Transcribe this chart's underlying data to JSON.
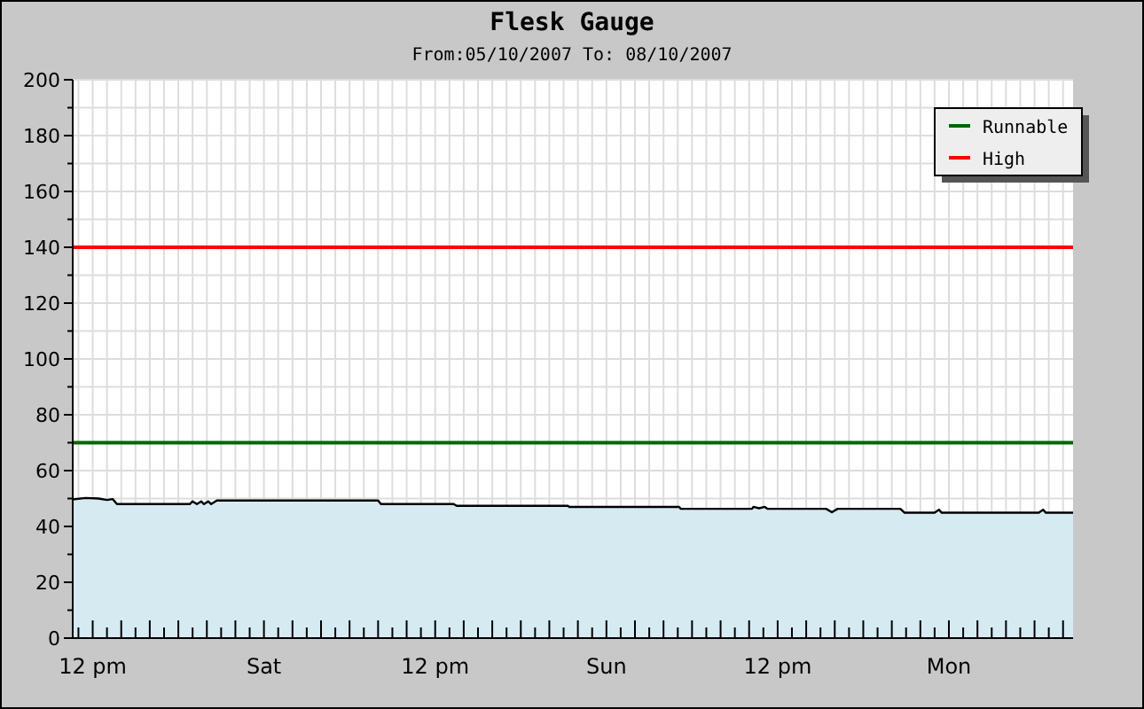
{
  "chart_data": {
    "type": "area",
    "title": "Flesk Gauge",
    "subtitle": "From:05/10/2007 To: 08/10/2007",
    "xlim": [
      "2007-10-05T10:36",
      "2007-10-08T08:42"
    ],
    "ylim": [
      0,
      200
    ],
    "yticks": [
      0,
      {
        "value": 10,
        "label": null
      },
      20,
      {
        "value": 30,
        "label": null
      },
      40,
      {
        "value": 50,
        "label": null
      },
      60,
      {
        "value": 70,
        "label": null
      },
      80,
      {
        "value": 90,
        "label": null
      },
      100,
      {
        "value": 110,
        "label": null
      },
      120,
      {
        "value": 130,
        "label": null
      },
      140,
      {
        "value": 150,
        "label": null
      },
      160,
      {
        "value": 170,
        "label": null
      },
      180,
      {
        "value": 190,
        "label": null
      },
      200
    ],
    "xticks": [
      {
        "value": "2007-10-05T11:00",
        "label": null
      },
      {
        "value": "2007-10-05T12:00",
        "label": "12 pm"
      },
      {
        "value": "2007-10-05T13:00",
        "label": null
      },
      {
        "value": "2007-10-05T14:00",
        "label": null
      },
      {
        "value": "2007-10-05T15:00",
        "label": null
      },
      {
        "value": "2007-10-05T16:00",
        "label": null
      },
      {
        "value": "2007-10-05T17:00",
        "label": null
      },
      {
        "value": "2007-10-05T18:00",
        "label": null
      },
      {
        "value": "2007-10-05T19:00",
        "label": null
      },
      {
        "value": "2007-10-05T20:00",
        "label": null
      },
      {
        "value": "2007-10-05T21:00",
        "label": null
      },
      {
        "value": "2007-10-05T22:00",
        "label": null
      },
      {
        "value": "2007-10-05T23:00",
        "label": null
      },
      {
        "value": "2007-10-06T00:00",
        "label": "Sat"
      },
      {
        "value": "2007-10-06T01:00",
        "label": null
      },
      {
        "value": "2007-10-06T02:00",
        "label": null
      },
      {
        "value": "2007-10-06T03:00",
        "label": null
      },
      {
        "value": "2007-10-06T04:00",
        "label": null
      },
      {
        "value": "2007-10-06T05:00",
        "label": null
      },
      {
        "value": "2007-10-06T06:00",
        "label": null
      },
      {
        "value": "2007-10-06T07:00",
        "label": null
      },
      {
        "value": "2007-10-06T08:00",
        "label": null
      },
      {
        "value": "2007-10-06T09:00",
        "label": null
      },
      {
        "value": "2007-10-06T10:00",
        "label": null
      },
      {
        "value": "2007-10-06T11:00",
        "label": null
      },
      {
        "value": "2007-10-06T12:00",
        "label": "12 pm"
      },
      {
        "value": "2007-10-06T13:00",
        "label": null
      },
      {
        "value": "2007-10-06T14:00",
        "label": null
      },
      {
        "value": "2007-10-06T15:00",
        "label": null
      },
      {
        "value": "2007-10-06T16:00",
        "label": null
      },
      {
        "value": "2007-10-06T17:00",
        "label": null
      },
      {
        "value": "2007-10-06T18:00",
        "label": null
      },
      {
        "value": "2007-10-06T19:00",
        "label": null
      },
      {
        "value": "2007-10-06T20:00",
        "label": null
      },
      {
        "value": "2007-10-06T21:00",
        "label": null
      },
      {
        "value": "2007-10-06T22:00",
        "label": null
      },
      {
        "value": "2007-10-06T23:00",
        "label": null
      },
      {
        "value": "2007-10-07T00:00",
        "label": "Sun"
      },
      {
        "value": "2007-10-07T01:00",
        "label": null
      },
      {
        "value": "2007-10-07T02:00",
        "label": null
      },
      {
        "value": "2007-10-07T03:00",
        "label": null
      },
      {
        "value": "2007-10-07T04:00",
        "label": null
      },
      {
        "value": "2007-10-07T05:00",
        "label": null
      },
      {
        "value": "2007-10-07T06:00",
        "label": null
      },
      {
        "value": "2007-10-07T07:00",
        "label": null
      },
      {
        "value": "2007-10-07T08:00",
        "label": null
      },
      {
        "value": "2007-10-07T09:00",
        "label": null
      },
      {
        "value": "2007-10-07T10:00",
        "label": null
      },
      {
        "value": "2007-10-07T11:00",
        "label": null
      },
      {
        "value": "2007-10-07T12:00",
        "label": "12 pm"
      },
      {
        "value": "2007-10-07T13:00",
        "label": null
      },
      {
        "value": "2007-10-07T14:00",
        "label": null
      },
      {
        "value": "2007-10-07T15:00",
        "label": null
      },
      {
        "value": "2007-10-07T16:00",
        "label": null
      },
      {
        "value": "2007-10-07T17:00",
        "label": null
      },
      {
        "value": "2007-10-07T18:00",
        "label": null
      },
      {
        "value": "2007-10-07T19:00",
        "label": null
      },
      {
        "value": "2007-10-07T20:00",
        "label": null
      },
      {
        "value": "2007-10-07T21:00",
        "label": null
      },
      {
        "value": "2007-10-07T22:00",
        "label": null
      },
      {
        "value": "2007-10-07T23:00",
        "label": null
      },
      {
        "value": "2007-10-08T00:00",
        "label": "Mon"
      },
      {
        "value": "2007-10-08T01:00",
        "label": null
      },
      {
        "value": "2007-10-08T02:00",
        "label": null
      },
      {
        "value": "2007-10-08T03:00",
        "label": null
      },
      {
        "value": "2007-10-08T04:00",
        "label": null
      },
      {
        "value": "2007-10-08T05:00",
        "label": null
      },
      {
        "value": "2007-10-08T06:00",
        "label": null
      },
      {
        "value": "2007-10-08T07:00",
        "label": null
      },
      {
        "value": "2007-10-08T08:00",
        "label": null
      }
    ],
    "grid": true,
    "legend": "top right",
    "series": [
      {
        "color": "#d6eaf2",
        "x": [
          "2007-10-05T10:36",
          "2007-10-05T11:30",
          "2007-10-05T12:24",
          "2007-10-05T13:00",
          "2007-10-05T13:24",
          "2007-10-05T13:42",
          "2007-10-05T18:48",
          "2007-10-05T19:00",
          "2007-10-05T19:18",
          "2007-10-05T19:36",
          "2007-10-05T19:48",
          "2007-10-05T20:06",
          "2007-10-05T20:18",
          "2007-10-05T20:42",
          "2007-10-06T08:00",
          "2007-10-06T08:12",
          "2007-10-06T13:18",
          "2007-10-06T13:30",
          "2007-10-06T21:18",
          "2007-10-06T21:24",
          "2007-10-07T05:06",
          "2007-10-07T05:12",
          "2007-10-07T10:12",
          "2007-10-07T10:18",
          "2007-10-07T10:42",
          "2007-10-07T11:06",
          "2007-10-07T11:18",
          "2007-10-07T15:24",
          "2007-10-07T15:48",
          "2007-10-07T16:12",
          "2007-10-07T20:36",
          "2007-10-07T20:54",
          "2007-10-07T23:00",
          "2007-10-07T23:18",
          "2007-10-07T23:30",
          "2007-10-08T06:18",
          "2007-10-08T06:36",
          "2007-10-08T06:48",
          "2007-10-08T08:42"
        ],
        "values": [
          49.7,
          50.2,
          50.0,
          49.5,
          49.8,
          48.0,
          48.0,
          49.0,
          48.0,
          49.0,
          48.0,
          49.0,
          48.0,
          49.3,
          49.3,
          48.0,
          48.0,
          47.4,
          47.4,
          47.0,
          47.0,
          46.3,
          46.3,
          47.0,
          46.5,
          47.0,
          46.3,
          46.3,
          45.1,
          46.3,
          46.3,
          44.9,
          44.9,
          46.0,
          44.9,
          44.9,
          46.0,
          44.9,
          44.9
        ]
      },
      {
        "type": "line",
        "name": "Runnable",
        "color": "#006600",
        "x": [
          "2007-10-05T10:36",
          "2007-10-08T08:42"
        ],
        "values": [
          70,
          70
        ]
      },
      {
        "type": "line",
        "name": "High",
        "color": "#ff0000",
        "x": [
          "2007-10-05T10:36",
          "2007-10-08T08:42"
        ],
        "values": [
          140,
          140
        ]
      }
    ]
  }
}
